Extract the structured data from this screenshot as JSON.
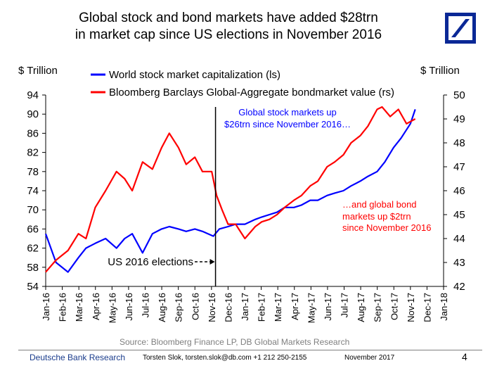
{
  "header": {
    "title_line1": "Global stock and bond markets have added $28trn",
    "title_line2": "in market cap since US elections in November 2016"
  },
  "brand_color": "#0a2896",
  "chart_data": {
    "type": "line",
    "left_axis_label": "$ Trillion",
    "right_axis_label": "$ Trillion",
    "ylim_left": [
      54,
      94
    ],
    "ylim_right": [
      42,
      50
    ],
    "yticks_left": [
      "94",
      "90",
      "86",
      "82",
      "78",
      "74",
      "70",
      "66",
      "62",
      "58",
      "54"
    ],
    "yticks_right": [
      "50",
      "49",
      "48",
      "47",
      "46",
      "45",
      "44",
      "43",
      "42"
    ],
    "xticks": [
      "Jan-16",
      "Feb-16",
      "Mar-16",
      "Apr-16",
      "May-16",
      "Jun-16",
      "Jul-16",
      "Aug-16",
      "Sep-16",
      "Oct-16",
      "Nov-16",
      "Dec-16",
      "Jan-17",
      "Feb-17",
      "Mar-17",
      "Apr-17",
      "May-17",
      "Jun-17",
      "Jul-17",
      "Aug-17",
      "Sep-17",
      "Oct-17",
      "Nov-17",
      "Dec-17",
      "Jan-18"
    ],
    "legend": [
      {
        "name": "World stock market capitalization (ls)",
        "color": "#0000ff"
      },
      {
        "name": "Bloomberg Barclays Global-Aggregate bondmarket value (rs)",
        "color": "#ff0000"
      }
    ],
    "series": [
      {
        "name": "World stock market capitalization (ls)",
        "axis": "left",
        "color": "#0000ff",
        "x": [
          "2016-01-01",
          "2016-01-20",
          "2016-02-11",
          "2016-03-01",
          "2016-03-15",
          "2016-04-01",
          "2016-04-20",
          "2016-05-10",
          "2016-05-25",
          "2016-06-08",
          "2016-06-27",
          "2016-07-15",
          "2016-08-01",
          "2016-08-15",
          "2016-09-01",
          "2016-09-15",
          "2016-10-01",
          "2016-10-15",
          "2016-11-04",
          "2016-11-15",
          "2016-12-01",
          "2016-12-15",
          "2017-01-01",
          "2017-01-20",
          "2017-02-01",
          "2017-02-15",
          "2017-03-01",
          "2017-03-15",
          "2017-04-01",
          "2017-04-15",
          "2017-05-01",
          "2017-05-15",
          "2017-06-01",
          "2017-06-15",
          "2017-07-01",
          "2017-07-15",
          "2017-08-01",
          "2017-08-15",
          "2017-09-01",
          "2017-09-15",
          "2017-10-01",
          "2017-10-15",
          "2017-11-01",
          "2017-11-10"
        ],
        "values": [
          65,
          59,
          57,
          60,
          62,
          63,
          64,
          62,
          64,
          65,
          61,
          65,
          66,
          66.5,
          66,
          65.5,
          66,
          65.5,
          64.5,
          66,
          66.5,
          67,
          67,
          68,
          68.5,
          69,
          69.5,
          70.5,
          70.5,
          71,
          72,
          72,
          73,
          73.5,
          74,
          75,
          76,
          77,
          78,
          80,
          83,
          85,
          88,
          91
        ]
      },
      {
        "name": "Bloomberg Barclays Global-Aggregate bondmarket value (rs)",
        "axis": "right",
        "color": "#ff0000",
        "x": [
          "2016-01-01",
          "2016-01-20",
          "2016-02-11",
          "2016-03-01",
          "2016-03-15",
          "2016-04-01",
          "2016-04-20",
          "2016-05-10",
          "2016-05-25",
          "2016-06-08",
          "2016-06-27",
          "2016-07-15",
          "2016-08-01",
          "2016-08-15",
          "2016-09-01",
          "2016-09-15",
          "2016-10-01",
          "2016-10-15",
          "2016-11-01",
          "2016-11-10",
          "2016-11-20",
          "2016-12-01",
          "2016-12-15",
          "2017-01-01",
          "2017-01-20",
          "2017-02-01",
          "2017-02-15",
          "2017-03-01",
          "2017-03-15",
          "2017-04-01",
          "2017-04-15",
          "2017-05-01",
          "2017-05-15",
          "2017-06-01",
          "2017-06-15",
          "2017-07-01",
          "2017-07-15",
          "2017-08-01",
          "2017-08-15",
          "2017-09-01",
          "2017-09-10",
          "2017-09-25",
          "2017-10-10",
          "2017-10-25",
          "2017-11-10"
        ],
        "values": [
          42.6,
          43.1,
          43.5,
          44.2,
          44.0,
          45.3,
          46.0,
          46.8,
          46.5,
          46.0,
          47.2,
          46.9,
          47.8,
          48.4,
          47.8,
          47.1,
          47.4,
          46.8,
          46.8,
          45.8,
          45.2,
          44.6,
          44.6,
          44.0,
          44.5,
          44.7,
          44.8,
          45.0,
          45.3,
          45.6,
          45.8,
          46.2,
          46.4,
          47.0,
          47.2,
          47.5,
          48.0,
          48.3,
          48.7,
          49.4,
          49.5,
          49.1,
          49.4,
          48.8,
          49.0
        ]
      }
    ],
    "annotations": {
      "stock_line1": "Global stock markets up",
      "stock_line2": "$26trn since November 2016…",
      "bond_line1": "…and global bond",
      "bond_line2": "markets up $2trn",
      "bond_line3": "since November 2016",
      "election": "US 2016 elections"
    },
    "election_date": "2016-11-08",
    "grid": false
  },
  "footer": {
    "source": "Source: Bloomberg Finance LP, DB Global Markets Research",
    "brand": "Deutsche Bank Research",
    "author": "Torsten Slok, torsten.slok@db.com  +1 212 250-2155",
    "date": "November  2017",
    "page": "4"
  }
}
